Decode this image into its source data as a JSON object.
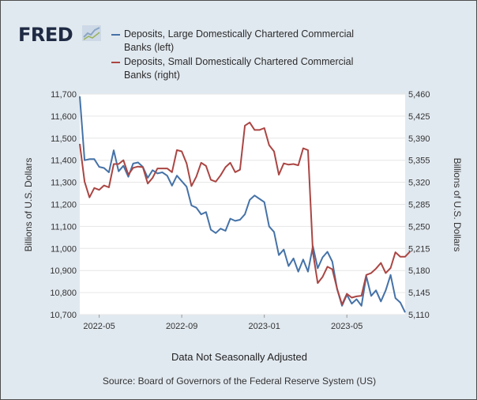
{
  "header": {
    "logo_text": "FRED",
    "logo_icon": "chart-trend-icon"
  },
  "chart_data": {
    "type": "line",
    "title": "",
    "xlabel": "",
    "note": "Data Not Seasonally Adjusted",
    "source": "Source: Board of Governors of the Federal Reserve System (US)",
    "ylabel_left": "Billions of U.S. Dollars",
    "ylabel_right": "Billions of U.S. Dollars",
    "ylim_left": [
      10700,
      11700
    ],
    "ylim_right": [
      5110,
      5460
    ],
    "yticks_left": [
      "10,700",
      "10,800",
      "10,900",
      "11,000",
      "11,100",
      "11,200",
      "11,300",
      "11,400",
      "11,500",
      "11,600",
      "11,700"
    ],
    "yticks_right": [
      "5,110",
      "5,145",
      "5,180",
      "5,215",
      "5,250",
      "5,285",
      "5,320",
      "5,355",
      "5,390",
      "5,425",
      "5,460"
    ],
    "xticks": [
      "2022-05",
      "2022-09",
      "2023-01",
      "2023-05"
    ],
    "grid": true,
    "legend_position": "top",
    "series": [
      {
        "name": "Deposits, Large Domestically Chartered Commercial Banks (left)",
        "axis": "left",
        "color": "#4572a7",
        "values": [
          11690,
          11400,
          11405,
          11405,
          11370,
          11365,
          11345,
          11445,
          11350,
          11375,
          11325,
          11385,
          11390,
          11370,
          11320,
          11355,
          11340,
          11345,
          11330,
          11285,
          11330,
          11305,
          11280,
          11195,
          11185,
          11155,
          11165,
          11085,
          11070,
          11090,
          11080,
          11135,
          11125,
          11130,
          11155,
          11220,
          11240,
          11225,
          11210,
          11100,
          11075,
          10970,
          10995,
          10920,
          10955,
          10895,
          10950,
          10895,
          11010,
          10910,
          10960,
          10985,
          10940,
          10815,
          10740,
          10790,
          10750,
          10770,
          10740,
          10875,
          10785,
          10810,
          10760,
          10810,
          10880,
          10775,
          10755,
          10710
        ]
      },
      {
        "name": "Deposits, Small Domestically Chartered Commercial Banks (right)",
        "axis": "right",
        "color": "#aa4643",
        "values": [
          5381,
          5321,
          5296,
          5311,
          5308,
          5315,
          5312,
          5349,
          5349,
          5355,
          5332,
          5343,
          5345,
          5344,
          5318,
          5327,
          5342,
          5342,
          5342,
          5336,
          5371,
          5369,
          5350,
          5314,
          5329,
          5351,
          5346,
          5324,
          5321,
          5331,
          5344,
          5351,
          5336,
          5340,
          5410,
          5415,
          5403,
          5403,
          5406,
          5379,
          5369,
          5332,
          5350,
          5348,
          5349,
          5347,
          5374,
          5371,
          5209,
          5160,
          5170,
          5186,
          5182,
          5151,
          5126,
          5143,
          5137,
          5139,
          5140,
          5173,
          5176,
          5183,
          5192,
          5176,
          5184,
          5209,
          5202,
          5202,
          5210
        ]
      }
    ]
  }
}
